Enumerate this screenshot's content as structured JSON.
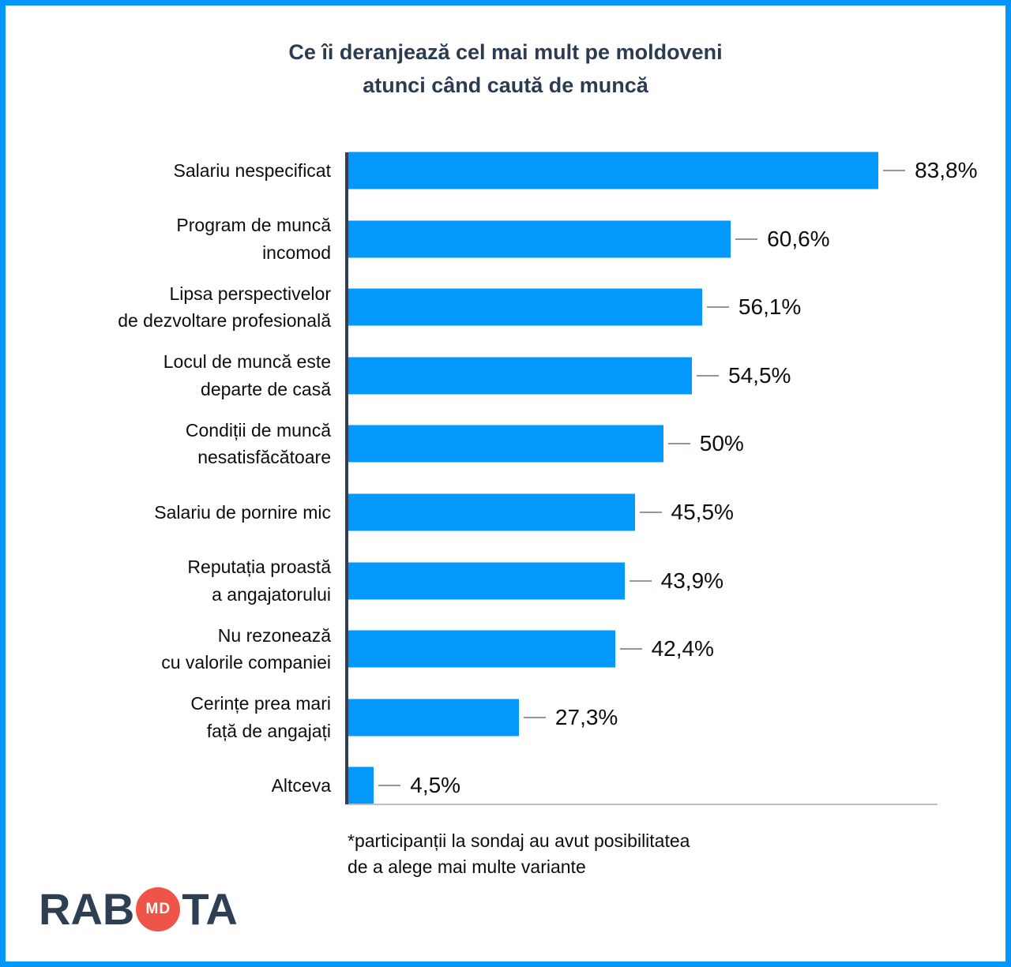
{
  "frame": {
    "border_color": "#0596fd",
    "background": "#ffffff"
  },
  "title": {
    "line1": "Ce îi deranjează cel mai mult pe moldoveni",
    "line2": "atunci când caută de muncă",
    "color": "#2b3c52"
  },
  "chart_data": {
    "type": "bar",
    "orientation": "horizontal",
    "title": "Ce îi deranjează cel mai mult pe moldoveni atunci când caută de muncă",
    "categories": [
      "Salariu nespecificat",
      "Program de muncă incomod",
      "Lipsa perspectivelor de dezvoltare profesională",
      "Locul de muncă este departe de casă",
      "Condiții de muncă nesatisfăcătoare",
      "Salariu de pornire mic",
      "Reputația proastă a angajatorului",
      "Nu rezonează cu valorile companiei",
      "Cerințe prea mari față de angajați",
      "Altceva"
    ],
    "label_lines": [
      [
        "Salariu nespecificat"
      ],
      [
        "Program de muncă",
        "incomod"
      ],
      [
        "Lipsa perspectivelor",
        "de dezvoltare profesională"
      ],
      [
        "Locul de muncă este",
        "departe de casă"
      ],
      [
        "Condiții de muncă",
        "nesatisfăcătoare"
      ],
      [
        "Salariu de pornire mic"
      ],
      [
        "Reputația proastă",
        "a angajatorului"
      ],
      [
        "Nu rezonează",
        "cu valorile companiei"
      ],
      [
        "Cerințe prea mari",
        "față de angajați"
      ],
      [
        "Altceva"
      ]
    ],
    "values": [
      83.8,
      60.6,
      56.1,
      54.5,
      50,
      45.5,
      43.9,
      42.4,
      27.3,
      4.5
    ],
    "value_labels": [
      "83,8%",
      "60,6%",
      "56,1%",
      "54,5%",
      "50%",
      "45,5%",
      "43,9%",
      "42,4%",
      "27,3%",
      "4,5%"
    ],
    "bar_color": "#0398fc",
    "xlabel": "",
    "ylabel": "",
    "xlim": [
      0,
      93.1
    ],
    "grid": false,
    "legend": false,
    "footnote": "*participanții la sondaj au avut posibilitatea de a alege mai multe variante"
  },
  "footnote": {
    "line1": "*participanții la sondaj au avut posibilitatea",
    "line2": "de a alege mai multe variante"
  },
  "logo": {
    "part1": "RAB",
    "badge": "MD",
    "part2": "TA",
    "badge_color": "#ef5449",
    "text_color": "#2e3e53"
  }
}
